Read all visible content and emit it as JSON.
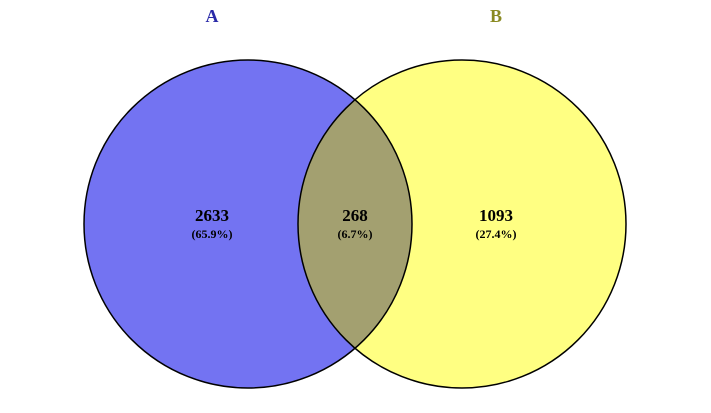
{
  "chart_data": {
    "type": "venn",
    "sets": [
      {
        "name": "A",
        "color": "#7373f2",
        "label_color": "#2a2aa8"
      },
      {
        "name": "B",
        "color": "#ffff82",
        "label_color": "#8a8a22"
      }
    ],
    "overlap_color": "#a3a070",
    "values": [
      2633,
      268,
      1093
    ],
    "percents": [
      65.9,
      6.7,
      27.4
    ],
    "percent_labels": [
      "(65.9%)",
      "(6.7%)",
      "(27.4%)"
    ]
  }
}
